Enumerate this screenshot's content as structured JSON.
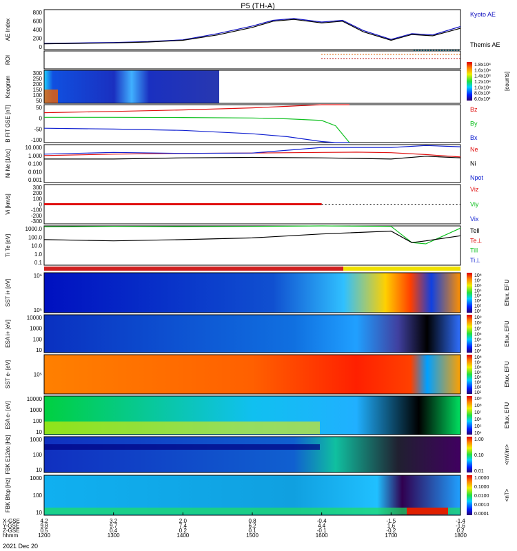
{
  "title": "P5 (TH-A)",
  "date_label": "2021 Dec 20",
  "colors": {
    "kyoto": "#1010c0",
    "themis": "#000000",
    "red": "#e01010",
    "green": "#10c020",
    "blue": "#1020d0",
    "black": "#000000"
  },
  "chart_data": [
    {
      "type": "line",
      "panel": "ae",
      "ylabel": "AE Index",
      "yticks": [
        "800",
        "600",
        "400",
        "200",
        "0"
      ],
      "ylim": [
        -100,
        800
      ],
      "x": [
        12.0,
        12.5,
        13.0,
        13.5,
        14.0,
        14.5,
        15.0,
        15.3,
        15.6,
        16.0,
        16.3,
        16.6,
        17.0,
        17.3,
        17.6,
        18.0
      ],
      "series": [
        {
          "name": "Kyoto AE",
          "values": [
            40,
            50,
            60,
            80,
            120,
            260,
            430,
            560,
            600,
            520,
            560,
            330,
            130,
            260,
            230,
            420
          ]
        },
        {
          "name": "Themis AE",
          "values": [
            30,
            40,
            50,
            70,
            110,
            230,
            400,
            540,
            580,
            500,
            540,
            300,
            110,
            240,
            210,
            380
          ]
        }
      ],
      "legend": [
        "Kyoto AE",
        "Themis AE"
      ]
    },
    {
      "type": "line",
      "panel": "roi",
      "ylabel": "ROI"
    },
    {
      "type": "heatmap",
      "panel": "keogram",
      "ylabel": "Keogram",
      "yticks": [
        "300",
        "250",
        "200",
        "150",
        "100",
        "50"
      ],
      "colorbar_label": "[counts]",
      "colorbar_ticks": [
        "1.8x10⁴",
        "1.6x10⁴",
        "1.4x10⁴",
        "1.2x10⁴",
        "1.0x10⁴",
        "8.0x10³",
        "6.0x10³"
      ]
    },
    {
      "type": "line",
      "panel": "bfield",
      "ylabel": "B FIT GSE [nT]",
      "yticks": [
        "50",
        "0",
        "-50",
        "-100"
      ],
      "ylim": [
        -100,
        80
      ],
      "x": [
        12.0,
        13.0,
        14.0,
        15.0,
        15.5,
        16.0,
        16.2,
        16.4
      ],
      "series": [
        {
          "name": "Bz",
          "values": [
            42,
            48,
            55,
            65,
            72,
            80,
            85,
            88
          ]
        },
        {
          "name": "By",
          "values": [
            20,
            20,
            19,
            17,
            13,
            5,
            -20,
            -100
          ]
        },
        {
          "name": "Bx",
          "values": [
            -32,
            -36,
            -42,
            -58,
            -72,
            -95,
            -100,
            -100
          ]
        }
      ],
      "legend": [
        "Bz",
        "By",
        "Bx"
      ]
    },
    {
      "type": "line",
      "panel": "density",
      "ylabel": "Ni Ne [1/cc]",
      "yticks": [
        "10.000",
        "1.000",
        "0.100",
        "0.010",
        "0.001"
      ],
      "ylim": [
        0.001,
        10
      ],
      "x": [
        12.0,
        13.0,
        14.0,
        15.0,
        16.0,
        16.5,
        17.0,
        17.5,
        18.0
      ],
      "series": [
        {
          "name": "Ne",
          "values": [
            0.7,
            1.0,
            1.2,
            1.3,
            1.5,
            1.6,
            1.4,
            0.9,
            0.5
          ]
        },
        {
          "name": "Ni",
          "values": [
            0.3,
            0.3,
            0.4,
            0.45,
            0.4,
            0.35,
            0.3,
            0.6,
            0.4
          ]
        },
        {
          "name": "Npot",
          "values": [
            1.0,
            1.5,
            1.2,
            1.3,
            5.0,
            5.0,
            5.0,
            8.0,
            6.0
          ]
        }
      ],
      "legend": [
        "Ne",
        "Ni",
        "Npot"
      ]
    },
    {
      "type": "line",
      "panel": "velocity",
      "ylabel": "Vi [km/s]",
      "yticks": [
        "300",
        "200",
        "100",
        "0",
        "-100",
        "-200",
        "-300"
      ],
      "ylim": [
        -300,
        300
      ],
      "legend": [
        "Viz",
        "Viy",
        "Vix"
      ]
    },
    {
      "type": "line",
      "panel": "temperature",
      "ylabel": "Ti Te [eV]",
      "yticks": [
        "1000.0",
        "100.0",
        "10.0",
        "1.0",
        "0.1"
      ],
      "ylim": [
        0.1,
        1000
      ],
      "x": [
        12.0,
        13.0,
        14.0,
        15.0,
        16.0,
        17.0,
        17.3,
        17.5,
        18.0
      ],
      "series": [
        {
          "name": "Till",
          "values": [
            800,
            900,
            850,
            900,
            1000,
            900,
            20,
            15,
            600
          ]
        },
        {
          "name": "Tell",
          "values": [
            40,
            30,
            40,
            60,
            150,
            300,
            20,
            30,
            100
          ]
        }
      ],
      "legend": [
        "Tell",
        "Te⊥",
        "Till",
        "Ti⊥"
      ]
    },
    {
      "type": "heatmap",
      "panel": "sst-i",
      "ylabel": "SST i+ [eV]",
      "yticks": [
        "10⁶",
        "10⁵"
      ],
      "colorbar_label": "Eflux, EFU",
      "colorbar_ticks": [
        "10⁸",
        "10⁷",
        "10⁶",
        "10⁵",
        "10⁴",
        "10³",
        "10²",
        "10¹"
      ]
    },
    {
      "type": "heatmap",
      "panel": "esa-i",
      "ylabel": "ESA i+ [eV]",
      "yticks": [
        "10000",
        "1000",
        "100",
        "10"
      ],
      "colorbar_label": "Eflux, EFU",
      "colorbar_ticks": [
        "10⁹",
        "10⁸",
        "10⁷",
        "10⁶",
        "10⁵",
        "10⁴",
        "10³"
      ]
    },
    {
      "type": "heatmap",
      "panel": "sst-e",
      "ylabel": "SST e- [eV]",
      "yticks": [
        "10⁵"
      ],
      "colorbar_label": "Eflux, EFU",
      "colorbar_ticks": [
        "10⁸",
        "10⁷",
        "10⁶",
        "10⁵",
        "10⁴",
        "10³",
        "10²",
        "10¹"
      ]
    },
    {
      "type": "heatmap",
      "panel": "esa-e",
      "ylabel": "ESA e- [eV]",
      "yticks": [
        "10000",
        "1000",
        "100",
        "10"
      ],
      "colorbar_label": "Eflux, EFU",
      "colorbar_ticks": [
        "10⁹",
        "10⁸",
        "10⁷",
        "10⁶",
        "10⁵",
        "10⁴"
      ]
    },
    {
      "type": "heatmap",
      "panel": "fbk-e",
      "ylabel": "FBK E12dc [Hz]",
      "yticks": [
        "1000",
        "100",
        "10"
      ],
      "colorbar_label": "<mV/m>",
      "colorbar_ticks": [
        "1.00",
        "0.10",
        "0.01"
      ]
    },
    {
      "type": "heatmap",
      "panel": "fbk-b",
      "ylabel": "FBK Bfcp [Hz]",
      "yticks": [
        "1000",
        "100",
        "10"
      ],
      "colorbar_label": "<nT>",
      "colorbar_ticks": [
        "1.0000",
        "0.1000",
        "0.0100",
        "0.0010",
        "0.0001"
      ]
    }
  ],
  "xaxis": {
    "row_labels": [
      "X-GSE",
      "Y-GSE",
      "Z-GSE",
      "hhmm"
    ],
    "columns": [
      {
        "xgse": "4.2",
        "ygse": "9.8",
        "zgse": "0.5",
        "hhmm": "1200"
      },
      {
        "xgse": "3.2",
        "ygse": "9.7",
        "zgse": "0.4",
        "hhmm": "1300"
      },
      {
        "xgse": "2.0",
        "ygse": "7.4",
        "zgse": "0.2",
        "hhmm": "1400"
      },
      {
        "xgse": "0.8",
        "ygse": "6.2",
        "zgse": "0.1",
        "hhmm": "1500"
      },
      {
        "xgse": "-0.4",
        "ygse": "4.4",
        "zgse": "-0.1",
        "hhmm": "1600"
      },
      {
        "xgse": "-1.5",
        "ygse": "1.6",
        "zgse": "-0.2",
        "hhmm": "1700"
      },
      {
        "xgse": "-1.4",
        "ygse": "-1.6",
        "zgse": "0.2",
        "hhmm": "1800"
      }
    ]
  }
}
